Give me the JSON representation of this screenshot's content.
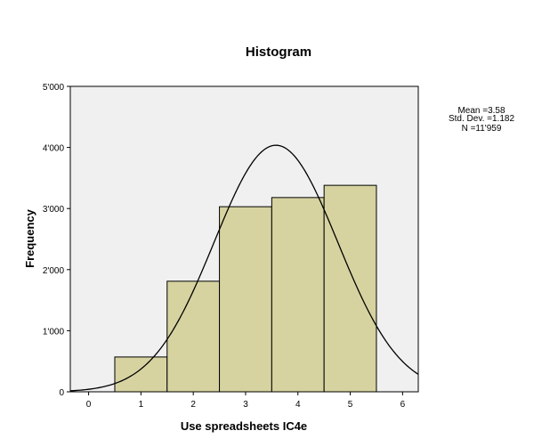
{
  "chart_data": {
    "type": "bar",
    "title": "Histogram",
    "xlabel": "Use spreadsheets IC4e",
    "ylabel": "Frequency",
    "xlim": [
      -0.35,
      6.3
    ],
    "ylim": [
      0,
      5000
    ],
    "x_ticks": [
      0,
      1,
      2,
      3,
      4,
      5,
      6
    ],
    "x_tick_labels": [
      "0",
      "1",
      "2",
      "3",
      "4",
      "5",
      "6"
    ],
    "y_ticks": [
      0,
      1000,
      2000,
      3000,
      4000,
      5000
    ],
    "y_tick_labels": [
      "0",
      "1'000",
      "2'000",
      "3'000",
      "4'000",
      "5'000"
    ],
    "bin_width": 1,
    "categories": [
      1,
      2,
      3,
      4,
      5
    ],
    "values": [
      570,
      1810,
      3030,
      3180,
      3380
    ],
    "normal_curve": {
      "mean": 3.58,
      "std_dev": 1.182,
      "n": 11959
    },
    "stats": [
      "Mean =3.58",
      "Std. Dev. =1.182",
      "N =11'959"
    ],
    "grid": false,
    "legend": "none",
    "colors": {
      "bar_fill": "#d6d3a1",
      "bar_stroke": "#000000",
      "plot_bg": "#f0f0f0",
      "curve": "#000000"
    }
  }
}
